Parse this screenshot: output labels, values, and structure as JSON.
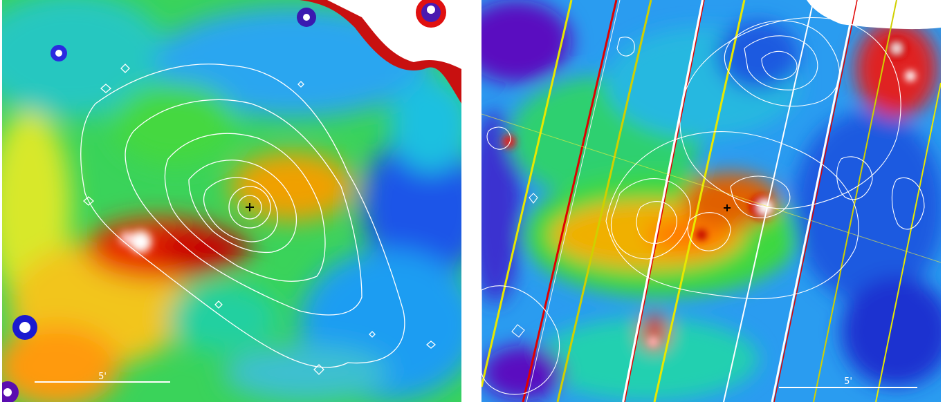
{
  "panels": [
    {
      "id": "left",
      "scalebar": {
        "label": "5'"
      }
    },
    {
      "id": "right",
      "scalebar": {
        "label": "5'"
      }
    }
  ],
  "colors": {
    "contour": "#ffffff",
    "marker": "#000000",
    "colormap": [
      "#6a0dad",
      "#1a2fd8",
      "#1ea0ff",
      "#23d88a",
      "#3bdc2c",
      "#ffe400",
      "#ff8a00",
      "#e80000",
      "#ffffff"
    ]
  }
}
